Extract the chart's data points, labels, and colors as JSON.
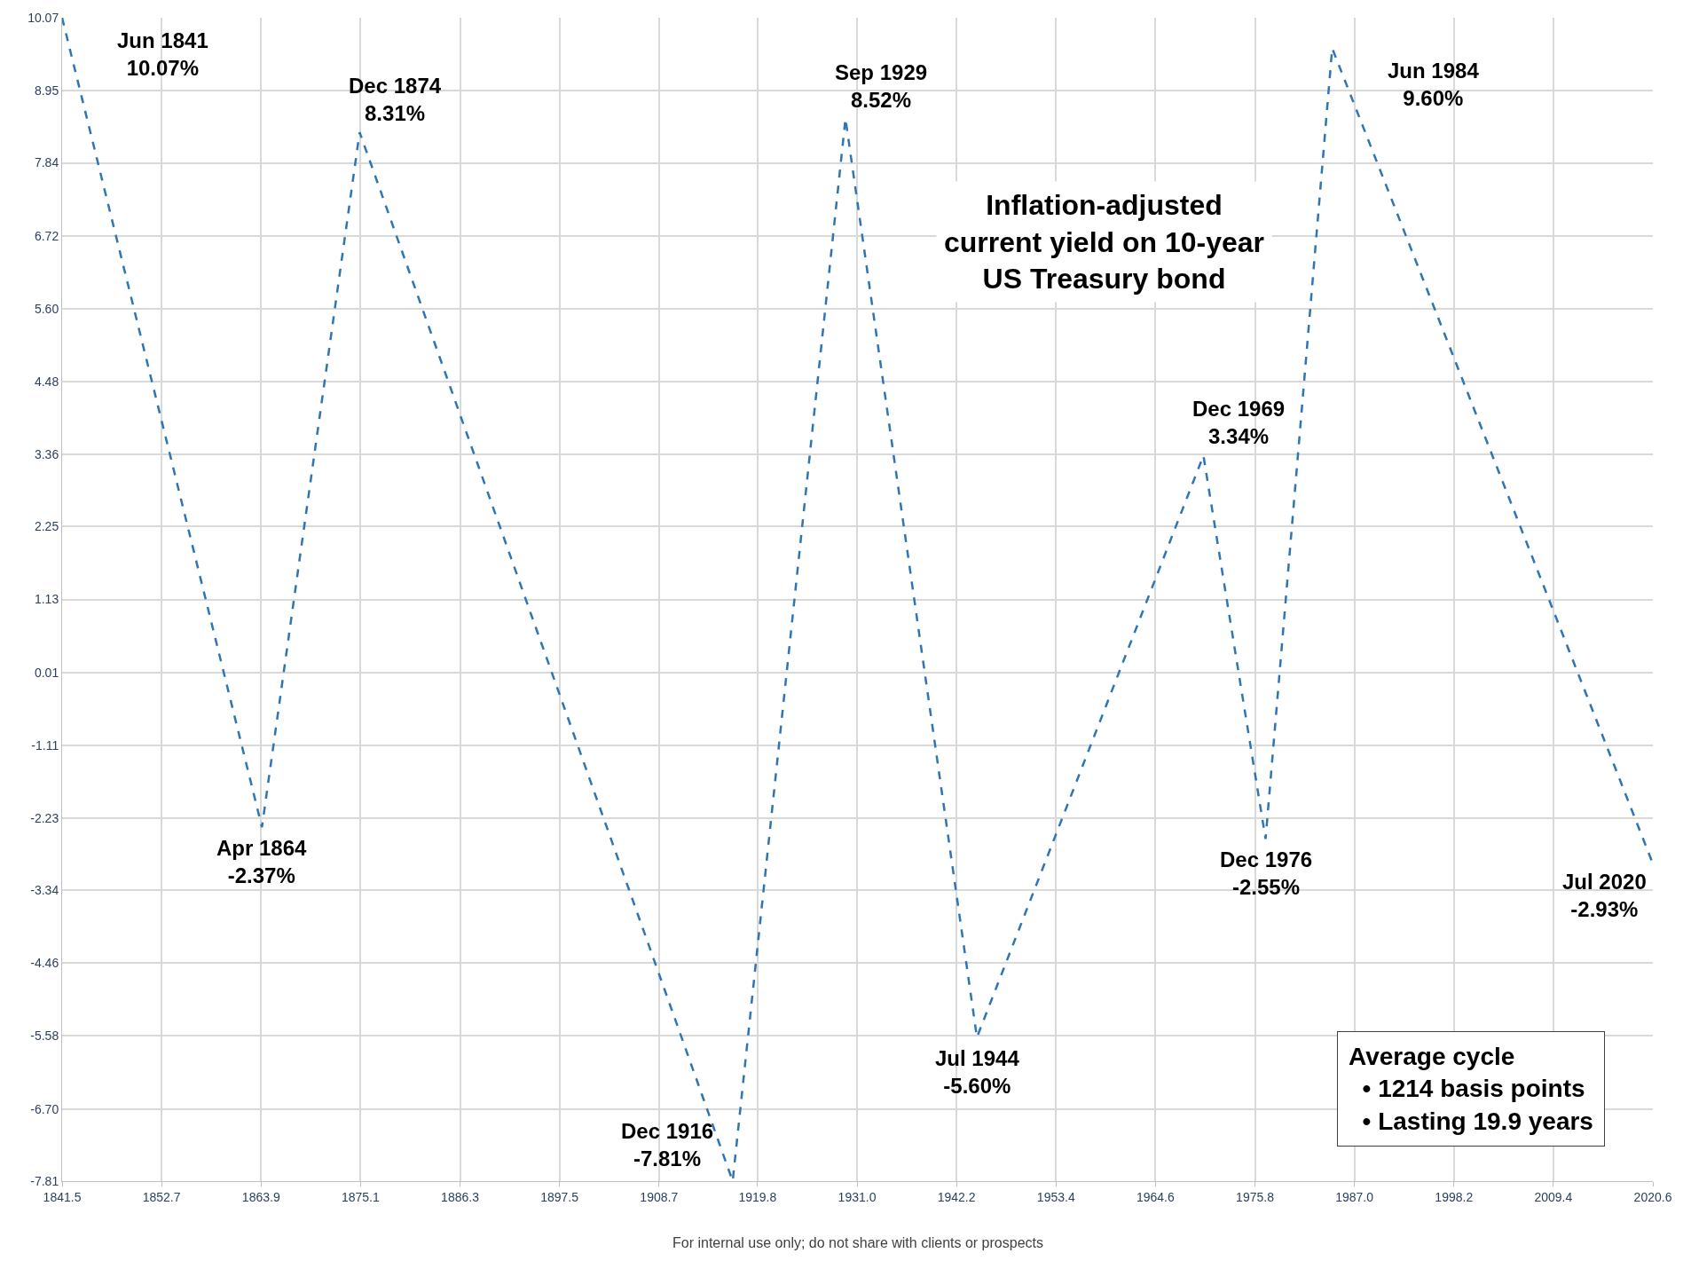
{
  "chart_data": {
    "type": "line",
    "title": "Inflation-adjusted\ncurrent yield on 10-year\nUS Treasury bond",
    "x": [
      1841.5,
      1864.0,
      1875.0,
      1917.0,
      1929.7,
      1944.5,
      1970.0,
      1977.0,
      1984.5,
      2020.6
    ],
    "series": [
      {
        "color": "#2e75b6",
        "values": [
          10.07,
          -2.37,
          8.31,
          -7.81,
          8.52,
          -5.6,
          3.34,
          -2.55,
          9.6,
          -2.93
        ]
      }
    ],
    "xlim": [
      1841.5,
      2020.6
    ],
    "xticks": [
      1841.5,
      1852.7,
      1863.9,
      1875.1,
      1886.3,
      1897.5,
      1908.7,
      1919.8,
      {
        "value": 1931.0,
        "label": "1931.0"
      },
      1942.2,
      1953.4,
      1964.6,
      1975.8,
      {
        "value": 1987.0,
        "label": "1987.0"
      },
      1998.2,
      2009.4,
      2020.6
    ],
    "ylim": [
      -7.81,
      10.07
    ],
    "yticks": [
      10.07,
      8.95,
      7.84,
      6.72,
      {
        "value": 5.6,
        "label": "5.60"
      },
      4.48,
      3.36,
      2.25,
      1.13,
      0.01,
      -1.11,
      -2.23,
      -3.34,
      -4.46,
      -5.58,
      {
        "value": -6.7,
        "label": "-6.70"
      },
      -7.81
    ],
    "grid": true,
    "legend": false,
    "marker": "none",
    "line_style": "dashed",
    "annotations": [
      {
        "text": "Jun 1841\n10.07%",
        "x": 1841.5,
        "y": 10.07
      },
      {
        "text": "Apr 1864\n-2.37%",
        "x": 1864.0,
        "y": -2.37
      },
      {
        "text": "Dec 1874\n8.31%",
        "x": 1875.0,
        "y": 8.31
      },
      {
        "text": "Dec 1916\n-7.81%",
        "x": 1917.0,
        "y": -7.81
      },
      {
        "text": "Sep 1929\n8.52%",
        "x": 1929.7,
        "y": 8.52
      },
      {
        "text": "Jul 1944\n-5.60%",
        "x": 1944.5,
        "y": -5.6
      },
      {
        "text": "Dec 1969\n3.34%",
        "x": 1970.0,
        "y": 3.34
      },
      {
        "text": "Dec 1976\n-2.55%",
        "x": 1977.0,
        "y": -2.55
      },
      {
        "text": "Jun 1984\n9.60%",
        "x": 1984.5,
        "y": 9.6
      },
      {
        "text": "Jul 2020\n-2.93%",
        "x": 2020.6,
        "y": -2.93
      },
      "Average cycle\n  • 1214 basis points\n  • Lasting 19.9 years",
      "For internal use only; do not share with clients or prospects"
    ]
  }
}
